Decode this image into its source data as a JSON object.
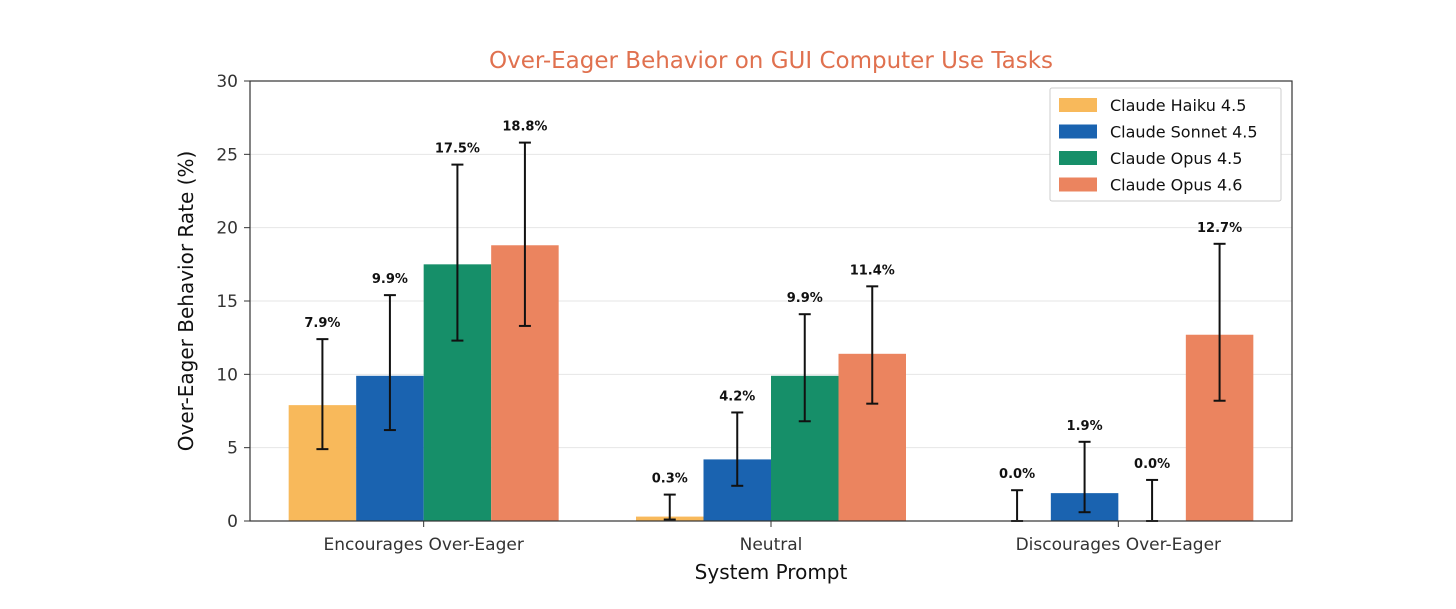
{
  "chart_data": {
    "type": "bar",
    "title": "Over-Eager Behavior on GUI Computer Use Tasks",
    "xlabel": "System Prompt",
    "ylabel": "Over-Eager Behavior Rate (%)",
    "ylim": [
      0,
      30
    ],
    "yticks": [
      "0",
      "5",
      "10",
      "15",
      "20",
      "25",
      "30"
    ],
    "categories": [
      "Encourages Over-Eager",
      "Neutral",
      "Discourages Over-Eager"
    ],
    "grid": true,
    "legend_position": "top-right",
    "series": [
      {
        "name": "Claude Haiku 4.5",
        "color": "#f8b95b",
        "values": [
          7.9,
          0.3,
          0.0
        ],
        "labels": [
          "7.9%",
          "0.3%",
          "0.0%"
        ],
        "error_low": [
          4.9,
          0.1,
          0.0
        ],
        "error_high": [
          12.4,
          1.8,
          2.1
        ],
        "label_shown": [
          true,
          true,
          true
        ]
      },
      {
        "name": "Claude Sonnet 4.5",
        "color": "#1a63b0",
        "values": [
          9.9,
          4.2,
          1.9
        ],
        "labels": [
          "9.9%",
          "4.2%",
          "1.9%"
        ],
        "error_low": [
          6.2,
          2.4,
          0.6
        ],
        "error_high": [
          15.4,
          7.4,
          5.4
        ],
        "label_shown": [
          true,
          true,
          true
        ]
      },
      {
        "name": "Claude Opus 4.5",
        "color": "#168f69",
        "values": [
          17.5,
          9.9,
          0.0
        ],
        "labels": [
          "17.5%",
          "9.9%",
          "0.0%"
        ],
        "error_low": [
          12.3,
          6.8,
          0.0
        ],
        "error_high": [
          24.3,
          14.1,
          2.8
        ],
        "label_shown": [
          true,
          true,
          true
        ]
      },
      {
        "name": "Claude Opus 4.6",
        "color": "#eb845f",
        "values": [
          18.8,
          11.4,
          12.7
        ],
        "labels": [
          "18.8%",
          "11.4%",
          "12.7%"
        ],
        "error_low": [
          13.3,
          8.0,
          8.2
        ],
        "error_high": [
          25.8,
          16.0,
          18.9
        ],
        "label_shown": [
          true,
          true,
          true
        ]
      }
    ]
  }
}
